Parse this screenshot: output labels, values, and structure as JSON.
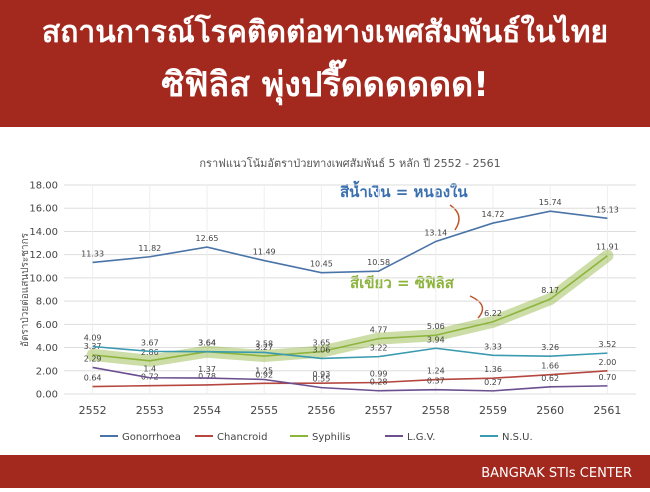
{
  "slide": {
    "title_line1": "สถานการณ์โรคติดต่อทางเพศสัมพันธ์ในไทย",
    "title_line2": "ซิฟิลิส พุ่งปรี๊ดดดดดด!",
    "footer": "BANGRAK STIs CENTER"
  },
  "chart_data": {
    "type": "line",
    "title": "กราฟแนวโน้มอัตราป่วยทางเพศสัมพันธ์ 5 หลัก ปี 2552 - 2561",
    "y_label": "อัตราป่วยต่อแสนประชากร",
    "annotations": [
      "สีน้ำเงิน = หนองใน",
      "สีเขียว = ซิฟิลิส"
    ],
    "categories": [
      "2552",
      "2553",
      "2554",
      "2555",
      "2556",
      "2557",
      "2558",
      "2559",
      "2560",
      "2561"
    ],
    "ylim": [
      0,
      18
    ],
    "yticks": [
      {
        "value": 0,
        "label": "0.00"
      },
      {
        "value": 2,
        "label": "2.00"
      },
      {
        "value": 4,
        "label": "4.00"
      },
      {
        "value": 6,
        "label": "6.00"
      },
      {
        "value": 8,
        "label": "8.00"
      },
      {
        "value": 10,
        "label": "10.00"
      },
      {
        "value": 12,
        "label": "12.00"
      },
      {
        "value": 14,
        "label": "14.00"
      },
      {
        "value": 16,
        "label": "16.00"
      },
      {
        "value": 18,
        "label": "18.00"
      }
    ],
    "grid": true,
    "series": [
      {
        "name": "Gonorrhoea",
        "color": "#4a74a8",
        "values": [
          11.33,
          11.82,
          12.65,
          11.49,
          10.45,
          10.58,
          13.14,
          14.72,
          15.74,
          15.13
        ]
      },
      {
        "name": "Chancroid",
        "color": "#b5473f",
        "values": [
          0.64,
          0.72,
          0.78,
          0.92,
          0.93,
          0.99,
          1.24,
          1.36,
          1.66,
          2
        ],
        "value_labels": [
          null,
          null,
          null,
          null,
          null,
          null,
          null,
          null,
          null,
          "2.00"
        ]
      },
      {
        "name": "Syphilis",
        "color": "#8db43c",
        "highlight": true,
        "values": [
          3.37,
          2.86,
          3.64,
          3.27,
          3.65,
          4.77,
          5.06,
          6.22,
          8.17,
          11.91
        ]
      },
      {
        "name": "L.G.V.",
        "color": "#6b4f8f",
        "values": [
          2.29,
          1.4,
          1.37,
          1.25,
          0.55,
          0.28,
          0.37,
          0.27,
          0.62,
          0.7
        ],
        "value_labels": [
          null,
          null,
          null,
          null,
          null,
          null,
          null,
          null,
          null,
          "0.70"
        ]
      },
      {
        "name": "N.S.U.",
        "color": "#3a9ab0",
        "values": [
          4.09,
          3.67,
          3.64,
          3.58,
          3.06,
          3.22,
          3.94,
          3.33,
          3.26,
          3.52
        ]
      }
    ]
  }
}
